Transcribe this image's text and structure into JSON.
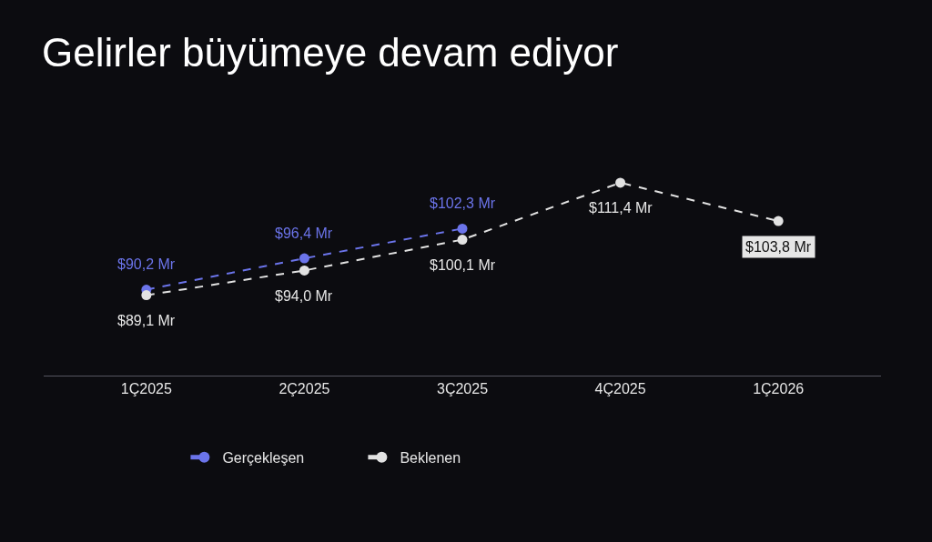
{
  "chart_data": {
    "type": "line",
    "title": "Gelirler büyümeye devam ediyor",
    "categories": [
      "1Ç2025",
      "2Ç2025",
      "3Ç2025",
      "4Ç2025",
      "1Ç2026"
    ],
    "series": [
      {
        "name": "Gerçekleşen",
        "color": "#6b74ea",
        "values": [
          90.2,
          96.4,
          102.3,
          null,
          null
        ],
        "value_labels": [
          "$90,2 Mr",
          "$96,4 Mr",
          "$102,3 Mr",
          null,
          null
        ]
      },
      {
        "name": "Beklenen",
        "color": "#e2e2e2",
        "values": [
          89.1,
          94.0,
          100.1,
          111.4,
          103.8
        ],
        "value_labels": [
          "$89,1 Mr",
          "$94,0 Mr",
          "$100,1 Mr",
          "$111,4 Mr",
          "$103,8 Mr"
        ]
      }
    ],
    "marker": "circle",
    "line_style": "dashed",
    "legend": "bottom",
    "grid": false
  }
}
